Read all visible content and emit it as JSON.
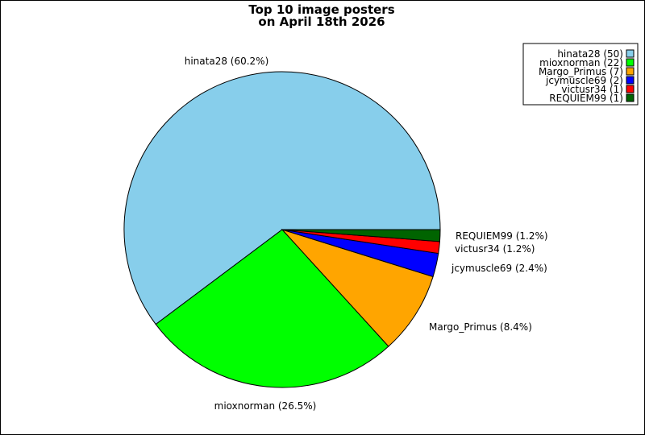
{
  "chart_data": {
    "type": "pie",
    "title_lines": [
      "Top 10 image posters",
      "on April 18th 2026"
    ],
    "slices": [
      {
        "name": "hinata28",
        "value": 50,
        "percent_label": "hinata28 (60.2%)",
        "legend_label": "hinata28 (50)",
        "color": "#87ceeb"
      },
      {
        "name": "mioxnorman",
        "value": 22,
        "percent_label": "mioxnorman (26.5%)",
        "legend_label": "mioxnorman (22)",
        "color": "#00ff00"
      },
      {
        "name": "Margo_Primus",
        "value": 7,
        "percent_label": "Margo_Primus (8.4%)",
        "legend_label": "Margo_Primus (7)",
        "color": "#ffa500"
      },
      {
        "name": "jcymuscle69",
        "value": 2,
        "percent_label": "jcymuscle69 (2.4%)",
        "legend_label": "jcymuscle69 (2)",
        "color": "#0000ff"
      },
      {
        "name": "victusr34",
        "value": 1,
        "percent_label": "victusr34 (1.2%)",
        "legend_label": "victusr34 (1)",
        "color": "#ff0000"
      },
      {
        "name": "REQUIEM99",
        "value": 1,
        "percent_label": "REQUIEM99 (1.2%)",
        "legend_label": "REQUIEM99 (1)",
        "color": "#006400"
      }
    ],
    "legend_placement": "top-right"
  }
}
